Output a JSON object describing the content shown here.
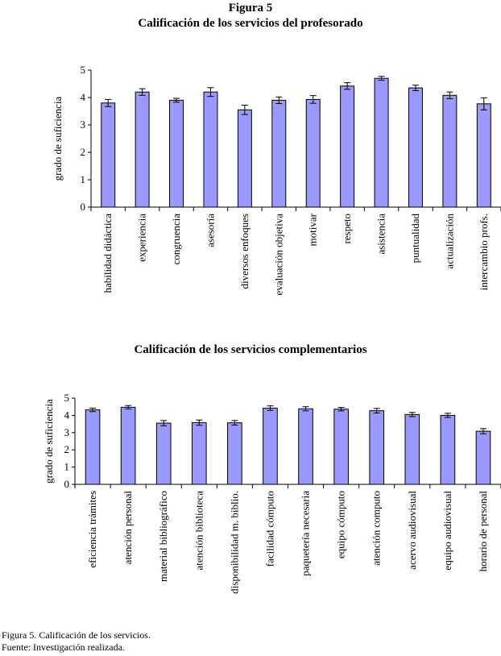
{
  "figure_label": "Figura 5",
  "footer": {
    "caption": "Figura 5. Calificación de los servicios.",
    "source": "Fuente: Investigación realizada."
  },
  "colors": {
    "bar_fill": "#9999ff",
    "bar_stroke": "#000000"
  },
  "chart_data": [
    {
      "type": "bar",
      "title": "Calificación de los servicios del profesorado",
      "xlabel": "",
      "ylabel": "grado de suficiencia",
      "ylim": [
        0,
        5
      ],
      "yticks": [
        0,
        1,
        2,
        3,
        4,
        5
      ],
      "categories": [
        "habilidad didáctica",
        "experiencia",
        "congruencia",
        "asesoría",
        "diversos enfoques",
        "evaluación objetiva",
        "motivar",
        "respeto",
        "asistencia",
        "puntualidad",
        "actualización",
        "intercambio profs."
      ],
      "values": [
        3.8,
        4.2,
        3.9,
        4.2,
        3.55,
        3.9,
        3.93,
        4.42,
        4.7,
        4.35,
        4.08,
        3.77
      ],
      "errors": [
        0.13,
        0.12,
        0.07,
        0.16,
        0.17,
        0.12,
        0.14,
        0.12,
        0.07,
        0.1,
        0.12,
        0.22
      ]
    },
    {
      "type": "bar",
      "title": "Calificación de los servicios complementarios",
      "xlabel": "",
      "ylabel": "grado de suficiencia",
      "ylim": [
        0,
        5
      ],
      "yticks": [
        0,
        1,
        2,
        3,
        4,
        5
      ],
      "categories": [
        "eficiencia trámites",
        "atención personal",
        "material bibliográfico",
        "atención biblioteca",
        "disponibilidad m. biblio.",
        "facilidad cómputo",
        "paquetería necesaria",
        "equipo cómputo",
        "atención computo",
        "acervo audiovisual",
        "equipo audiovisual",
        "horario de personal"
      ],
      "values": [
        4.32,
        4.47,
        3.55,
        3.58,
        3.57,
        4.42,
        4.38,
        4.36,
        4.27,
        4.05,
        4.0,
        3.08
      ],
      "errors": [
        0.1,
        0.1,
        0.15,
        0.15,
        0.13,
        0.13,
        0.12,
        0.1,
        0.13,
        0.12,
        0.12,
        0.15
      ]
    }
  ]
}
